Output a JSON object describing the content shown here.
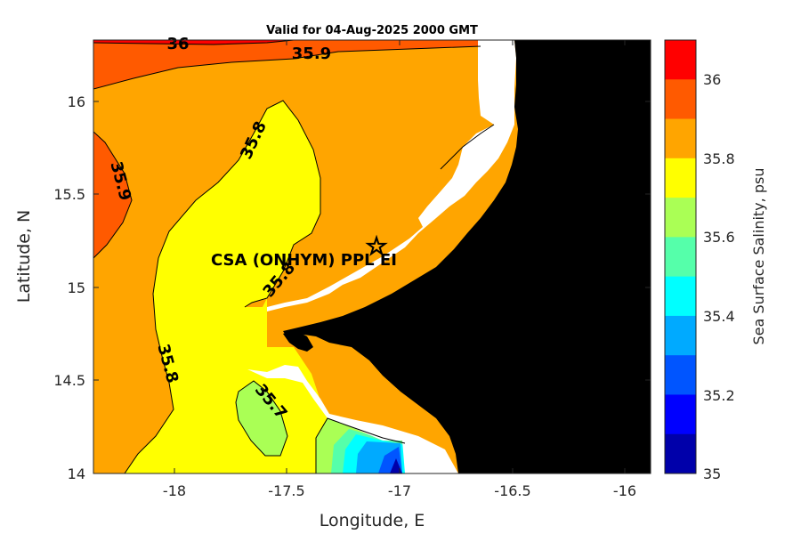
{
  "title": "Valid for 04-Aug-2025 2000 GMT",
  "x_axis": {
    "label": "Longitude, E",
    "ticks": [
      "-18",
      "-17.5",
      "-17",
      "-16.5",
      "-16"
    ]
  },
  "y_axis": {
    "label": "Latitude, N",
    "ticks": [
      "16",
      "15.5",
      "15",
      "14.5",
      "14"
    ]
  },
  "colorbar": {
    "label": "Sea Surface Salinity, psu",
    "ticks": [
      "36",
      "35.8",
      "35.6",
      "35.4",
      "35.2",
      "35"
    ],
    "colors": [
      "#ff0000",
      "#ff5a00",
      "#ffa500",
      "#ffff00",
      "#aaff55",
      "#55ffaa",
      "#00ffff",
      "#00aaff",
      "#0055ff",
      "#0000ff",
      "#0000aa"
    ]
  },
  "station": {
    "label": "CSA (ONHYM) PPL EI"
  },
  "contour_labels": [
    "36",
    "35.9",
    "35.9",
    "35.8",
    "35.8",
    "35.8",
    "35.7"
  ],
  "chart_data": {
    "type": "heatmap",
    "title": "Valid for 04-Aug-2025 2000 GMT",
    "xlabel": "Longitude, E",
    "ylabel": "Latitude, N",
    "xlim": [
      -18.35,
      -15.93
    ],
    "ylim": [
      14.0,
      16.32
    ],
    "clim": [
      35.0,
      36.1
    ],
    "levels": [
      35.0,
      35.1,
      35.2,
      35.3,
      35.4,
      35.5,
      35.6,
      35.7,
      35.8,
      35.9,
      36.0,
      36.1
    ],
    "station": {
      "lon": -17.1,
      "lat": 15.22,
      "name": "CSA (ONHYM) PPL EI"
    },
    "contours": [
      {
        "level": 36.0,
        "label": "36"
      },
      {
        "level": 35.9,
        "label": "35.9"
      },
      {
        "level": 35.8,
        "label": "35.8"
      },
      {
        "level": 35.7,
        "label": "35.7"
      }
    ]
  }
}
